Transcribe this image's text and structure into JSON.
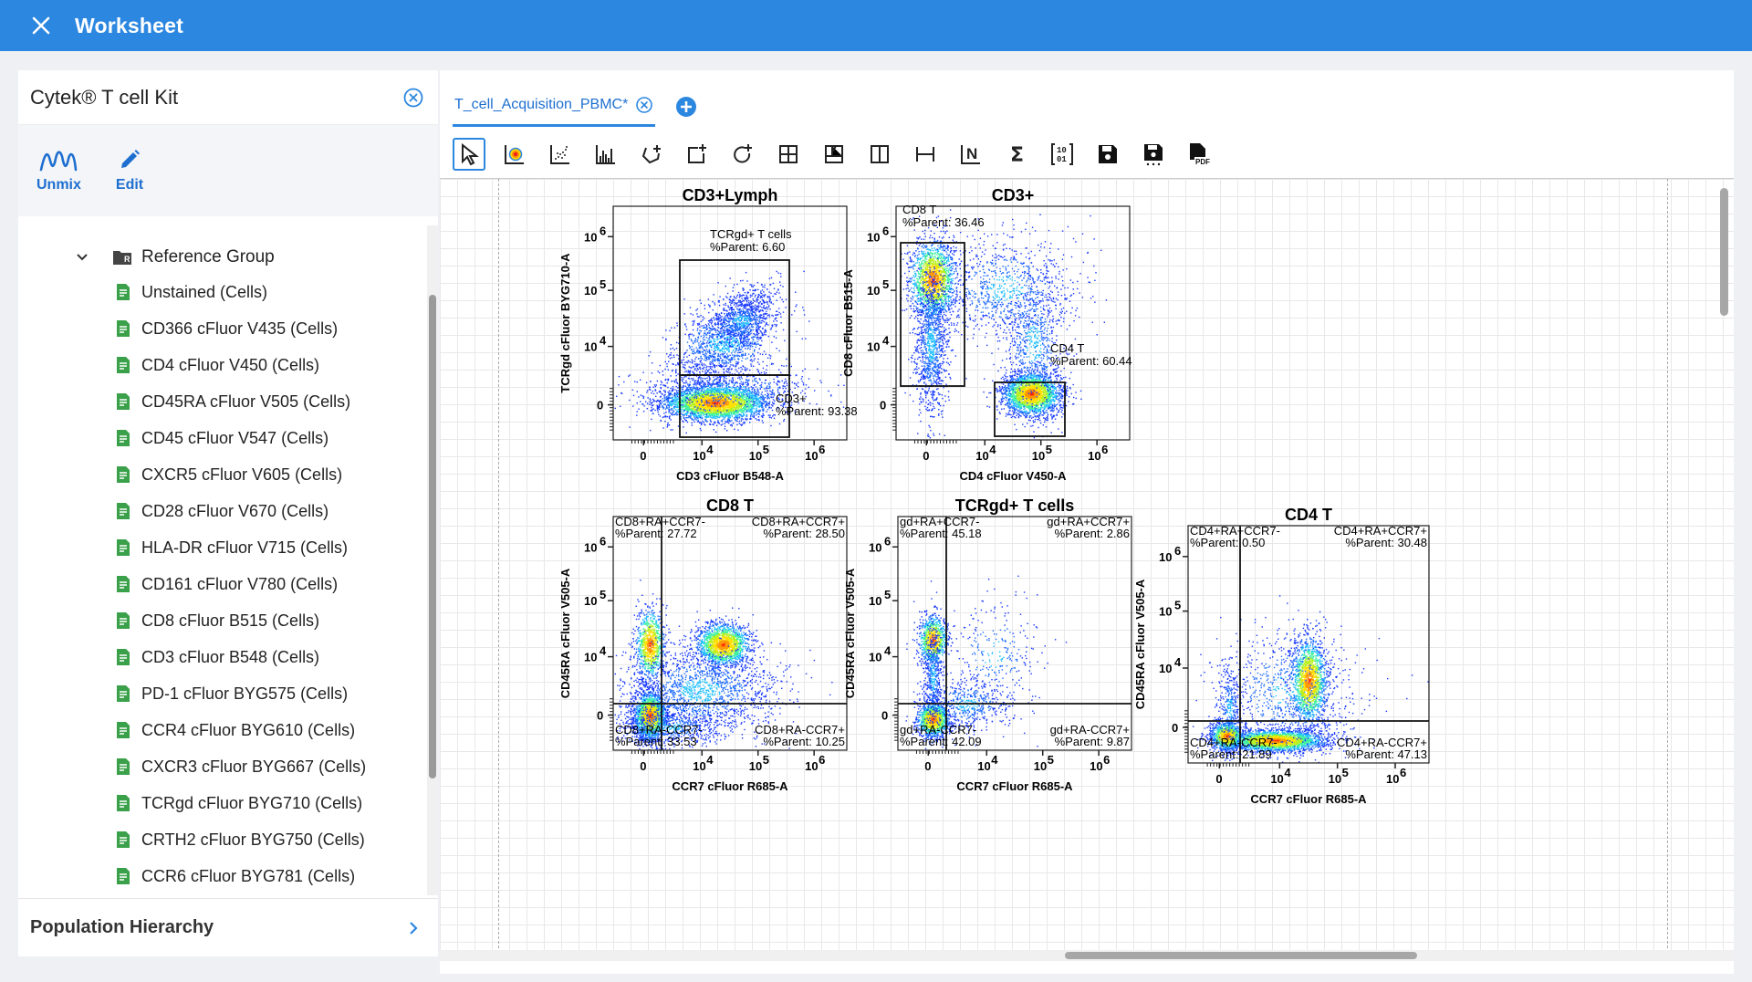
{
  "app": {
    "title": "Worksheet"
  },
  "kit": {
    "title": "Cytek® T cell Kit",
    "actions": [
      {
        "label": "Unmix"
      },
      {
        "label": "Edit"
      }
    ]
  },
  "tree": {
    "group": "Reference Group",
    "items": [
      "Unstained (Cells)",
      "CD366 cFluor V435 (Cells)",
      "CD4 cFluor V450 (Cells)",
      "CD45RA cFluor V505 (Cells)",
      "CD45 cFluor V547 (Cells)",
      "CXCR5 cFluor V605 (Cells)",
      "CD28 cFluor V670 (Cells)",
      "HLA-DR cFluor V715 (Cells)",
      "CD161 cFluor V780 (Cells)",
      "CD8 cFluor B515 (Cells)",
      "CD3 cFluor B548 (Cells)",
      "PD-1 cFluor BYG575 (Cells)",
      "CCR4 cFluor BYG610 (Cells)",
      "CXCR3 cFluor BYG667 (Cells)",
      "TCRgd cFluor BYG710 (Cells)",
      "CRTH2 cFluor BYG750 (Cells)",
      "CCR6 cFluor BYG781 (Cells)"
    ]
  },
  "population_hierarchy": {
    "label": "Population Hierarchy"
  },
  "tabs": [
    {
      "label": "T_cell_Acquisition_PBMC*"
    }
  ],
  "toolbar": {
    "tools": [
      "pointer-icon",
      "dot-plot-icon",
      "density-plot-icon",
      "histogram-icon",
      "polygon-gate-icon",
      "rectangle-gate-icon",
      "ellipse-gate-icon",
      "quadrant-gate-icon",
      "grid-gate-icon",
      "split-gate-icon",
      "interval-gate-icon",
      "n-label-icon",
      "sigma-icon",
      "binary-icon",
      "save-icon",
      "save-as-icon",
      "pdf-export-icon"
    ],
    "n_label": "N",
    "sigma": "Σ",
    "binary_top": "10",
    "binary_bottom": "01",
    "pdf": "PDF"
  },
  "colors": {
    "accent": "#2c87e0",
    "tab_text": "#1e6fd0"
  },
  "ticks": {
    "zero": "0",
    "ten": "10",
    "e4": "4",
    "e5": "5",
    "e6": "6"
  },
  "plots": [
    {
      "title": "CD3+Lymph",
      "xlabel": "CD3 cFluor B548-A",
      "ylabel": "TCRgd cFluor BYG710-A",
      "gates": [
        {
          "name": "TCRgd+ T cells",
          "pct": "%Parent: 6.60"
        },
        {
          "name": "CD3+",
          "pct": "%Parent: 93.38"
        }
      ]
    },
    {
      "title": "CD3+",
      "xlabel": "CD4 cFluor V450-A",
      "ylabel": "CD8 cFluor B515-A",
      "gates": [
        {
          "name": "CD8 T",
          "pct": "%Parent: 36.46"
        },
        {
          "name": "CD4 T",
          "pct": "%Parent: 60.44"
        }
      ]
    },
    {
      "title": "CD8 T",
      "xlabel": "CCR7 cFluor R685-A",
      "ylabel": "CD45RA cFluor V505-A",
      "quads": [
        {
          "name": "CD8+RA+CCR7-",
          "pct": "%Parent: 27.72"
        },
        {
          "name": "CD8+RA+CCR7+",
          "pct": "%Parent: 28.50"
        },
        {
          "name": "CD8+RA-CCR7-",
          "pct": "%Parent: 33.53"
        },
        {
          "name": "CD8+RA-CCR7+",
          "pct": "%Parent: 10.25"
        }
      ]
    },
    {
      "title": "TCRgd+ T cells",
      "xlabel": "CCR7 cFluor R685-A",
      "ylabel": "CD45RA cFluor V505-A",
      "quads": [
        {
          "name": "gd+RA+CCR7-",
          "pct": "%Parent: 45.18"
        },
        {
          "name": "gd+RA+CCR7+",
          "pct": "%Parent: 2.86"
        },
        {
          "name": "gd+RA-CCR7-",
          "pct": "%Parent: 42.09"
        },
        {
          "name": "gd+RA-CCR7+",
          "pct": "%Parent: 9.87"
        }
      ]
    },
    {
      "title": "CD4 T",
      "xlabel": "CCR7 cFluor R685-A",
      "ylabel": "CD45RA cFluor V505-A",
      "quads": [
        {
          "name": "CD4+RA+CCR7-",
          "pct": "%Parent: 0.50"
        },
        {
          "name": "CD4+RA+CCR7+",
          "pct": "%Parent: 30.48"
        },
        {
          "name": "CD4+RA-CCR7-",
          "pct": "%Parent: 21.89"
        },
        {
          "name": "CD4+RA-CCR7+",
          "pct": "%Parent: 47.13"
        }
      ]
    }
  ]
}
